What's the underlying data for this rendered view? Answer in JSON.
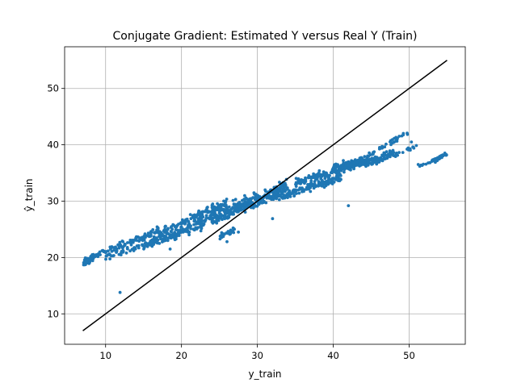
{
  "chart_data": {
    "type": "scatter",
    "title": "Conjugate Gradient: Estimated Y versus Real Y (Train)",
    "xlabel": "y_train",
    "ylabel": "ŷ_train",
    "xlim": [
      4.6,
      57.4
    ],
    "ylim": [
      4.6,
      57.4
    ],
    "xticks": [
      10,
      20,
      30,
      40,
      50
    ],
    "yticks": [
      10,
      20,
      30,
      40,
      50
    ],
    "grid": true,
    "point_color": "#1f77b4",
    "line_color": "#000000",
    "reference_line": {
      "x": [
        7,
        55
      ],
      "y": [
        7,
        55
      ]
    },
    "clusters": [
      {
        "xmin": 7.0,
        "xmax": 8.0,
        "slope": 0.4,
        "intercept": 16.3,
        "spread": 0.6,
        "count": 40
      },
      {
        "xmin": 8.0,
        "xmax": 17.0,
        "slope": 0.55,
        "intercept": 15.5,
        "spread": 0.6,
        "count": 120
      },
      {
        "xmin": 10.0,
        "xmax": 20.0,
        "slope": 0.4,
        "intercept": 16.1,
        "spread": 0.5,
        "count": 80
      },
      {
        "xmin": 15.0,
        "xmax": 23.0,
        "slope": 0.45,
        "intercept": 15.6,
        "spread": 0.8,
        "count": 120
      },
      {
        "xmin": 17.0,
        "xmax": 26.0,
        "slope": 0.62,
        "intercept": 13.6,
        "spread": 0.8,
        "count": 150
      },
      {
        "xmin": 22.0,
        "xmax": 34.0,
        "slope": 0.58,
        "intercept": 13.2,
        "spread": 1.1,
        "count": 220
      },
      {
        "xmin": 24.0,
        "xmax": 33.0,
        "slope": 0.55,
        "intercept": 13.5,
        "spread": 0.9,
        "count": 150
      },
      {
        "xmin": 32.0,
        "xmax": 41.0,
        "slope": 0.42,
        "intercept": 17.0,
        "spread": 0.8,
        "count": 150
      },
      {
        "xmin": 35.0,
        "xmax": 46.0,
        "slope": 0.38,
        "intercept": 20.0,
        "spread": 0.6,
        "count": 180
      },
      {
        "xmin": 40.0,
        "xmax": 48.0,
        "slope": 0.32,
        "intercept": 23.2,
        "spread": 0.6,
        "count": 120
      },
      {
        "xmin": 40.0,
        "xmax": 50.0,
        "slope": 0.75,
        "intercept": 4.8,
        "spread": 0.4,
        "count": 70
      },
      {
        "xmin": 45.0,
        "xmax": 51.0,
        "slope": 0.55,
        "intercept": 11.8,
        "spread": 0.4,
        "count": 40
      },
      {
        "xmin": 51.0,
        "xmax": 54.0,
        "slope": 0.3,
        "intercept": 21.0,
        "spread": 0.3,
        "count": 15
      },
      {
        "xmin": 53.0,
        "xmax": 55.0,
        "slope": 0.65,
        "intercept": 2.6,
        "spread": 0.3,
        "count": 40
      },
      {
        "xmin": 25.0,
        "xmax": 27.0,
        "slope": 0.6,
        "intercept": 8.7,
        "spread": 0.6,
        "count": 30
      }
    ],
    "outliers": [
      {
        "x": 11.9,
        "y": 13.8
      },
      {
        "x": 26.0,
        "y": 22.8
      },
      {
        "x": 32.0,
        "y": 26.9
      },
      {
        "x": 42.0,
        "y": 29.2
      },
      {
        "x": 50.3,
        "y": 40.5
      },
      {
        "x": 27.5,
        "y": 24.5
      },
      {
        "x": 18.5,
        "y": 21.5
      }
    ]
  }
}
